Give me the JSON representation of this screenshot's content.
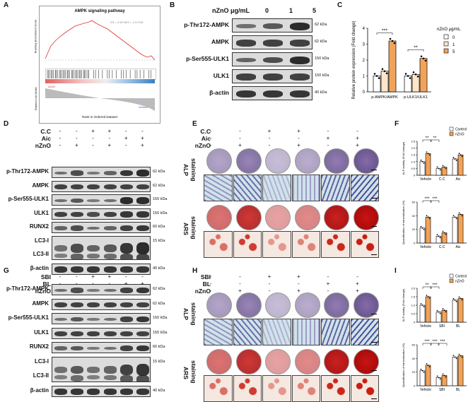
{
  "panels": {
    "A": {
      "letter": "A",
      "title": "AMPK signaling pathway",
      "ylabel_top": "Running Enrichment Score",
      "ylabel_bottom": "Ranked List Metric",
      "xlabel": "Rank in Ordered Dataset",
      "stats": "ES = 0.59 NES = 2.3 FDR",
      "high_label": "nZnO",
      "low_label": "Vehicle"
    },
    "B": {
      "letter": "B",
      "header": "nZnO μg/mL",
      "doses": [
        "0",
        "1",
        "5"
      ],
      "rows": [
        {
          "label": "p-Thr172-AMPK",
          "kda": "62 kDa"
        },
        {
          "label": "AMPK",
          "kda": "62 kDa"
        },
        {
          "label": "p-Ser555-ULK1",
          "kda": "150 kDa"
        },
        {
          "label": "ULK1",
          "kda": "150 kDa"
        },
        {
          "label": "β-actin",
          "kda": "40 kDa"
        }
      ]
    },
    "C": {
      "letter": "C",
      "legend_title": "nZnO μg/mL",
      "sig": [
        "***",
        "**"
      ],
      "colors": {
        "c0": "#ffffff",
        "c1": "#fde6c8",
        "c5": "#f2a35a"
      }
    },
    "D": {
      "letter": "D",
      "treat_labels": [
        "C.C",
        "Aic",
        "nZnO"
      ],
      "treat_signs": [
        [
          "-",
          "-",
          "+",
          "+",
          "-",
          "-"
        ],
        [
          "-",
          "-",
          "-",
          "-",
          "+",
          "+"
        ],
        [
          "-",
          "+",
          "-",
          "+",
          "-",
          "+"
        ]
      ],
      "rows": [
        {
          "label": "p-Thr172-AMPK",
          "kda": "62 kDa"
        },
        {
          "label": "AMPK",
          "kda": "62 kDa"
        },
        {
          "label": "p-Ser555-ULK1",
          "kda": "150 kDa"
        },
        {
          "label": "ULK1",
          "kda": "150 kDa"
        },
        {
          "label": "RUNX2",
          "kda": "60 kDa"
        },
        {
          "label": "LC3-I",
          "kda": "15 kDa"
        },
        {
          "label": "LC3-II",
          "kda": ""
        },
        {
          "label": "β-actin",
          "kda": "40 kDa"
        }
      ]
    },
    "E": {
      "letter": "E",
      "treat_labels": [
        "C.C",
        "Aic",
        "nZnO"
      ],
      "stain1": "ALP",
      "stain1b": "staining",
      "stain2": "ARS",
      "stain2b": "staining"
    },
    "F": {
      "letter": "F",
      "legend": [
        "Control",
        "nZnO"
      ],
      "ylabel_top": "ALP activity (Fold change)",
      "ylabel_bottom": "Quantification of mineralization (%)",
      "groups": [
        "Vehicle",
        "C.C",
        "Aic"
      ],
      "sig_top": [
        "**",
        "**"
      ],
      "sig_bottom": [
        "***",
        "***"
      ]
    },
    "G": {
      "letter": "G",
      "treat_labels": [
        "SBI",
        "BL",
        "nZnO"
      ],
      "treat_signs": [
        [
          "-",
          "-",
          "+",
          "+",
          "-",
          "-"
        ],
        [
          "-",
          "-",
          "-",
          "-",
          "+",
          "+"
        ],
        [
          "-",
          "+",
          "-",
          "+",
          "-",
          "+"
        ]
      ],
      "rows": [
        {
          "label": "p-Thr172-AMPK",
          "kda": "62 kDa"
        },
        {
          "label": "AMPK",
          "kda": "62 kDa"
        },
        {
          "label": "p-Ser555-ULK1",
          "kda": "150 kDa"
        },
        {
          "label": "ULK1",
          "kda": "150 kDa"
        },
        {
          "label": "RUNX2",
          "kda": "60 kDa"
        },
        {
          "label": "LC3-I",
          "kda": "15 kDa"
        },
        {
          "label": "LC3-II",
          "kda": ""
        },
        {
          "label": "β-actin",
          "kda": "40 kDa"
        }
      ]
    },
    "H": {
      "letter": "H",
      "treat_labels": [
        "SBI",
        "BL",
        "nZnO"
      ],
      "stain1": "ALP",
      "stain1b": "staining",
      "stain2": "ARS",
      "stain2b": "staining"
    },
    "I": {
      "letter": "I",
      "legend": [
        "Control",
        "nZnO"
      ],
      "ylabel_top": "ALP activity (Fold change)",
      "ylabel_bottom": "Quantification of mineralization (%)",
      "groups": [
        "Vehicle",
        "SBI",
        "BL"
      ],
      "sig_top": [
        "**",
        "***"
      ],
      "sig_bottom": [
        "***",
        "***",
        "***"
      ]
    }
  },
  "chart_data": [
    {
      "id": "C",
      "type": "bar",
      "categories": [
        "p-AMPK/AMPK",
        "p-ULK1/ULK1"
      ],
      "series": [
        {
          "name": "0",
          "values": [
            1.0,
            1.0
          ]
        },
        {
          "name": "1",
          "values": [
            1.3,
            1.1
          ]
        },
        {
          "name": "5",
          "values": [
            3.2,
            2.1
          ]
        }
      ],
      "ylabel": "Relative protein expression (Fold change)",
      "ylim": [
        0,
        4
      ],
      "yticks": [
        "0",
        "1",
        "2",
        "3",
        "4"
      ],
      "legend_title": "nZnO μg/mL"
    },
    {
      "id": "F-top",
      "type": "bar",
      "categories": [
        "Vehicle",
        "C.C",
        "Aic"
      ],
      "series": [
        {
          "name": "Control",
          "values": [
            1.0,
            0.5,
            1.2
          ]
        },
        {
          "name": "nZnO",
          "values": [
            1.6,
            0.6,
            1.5
          ]
        }
      ],
      "ylabel": "ALP activity (Fold change)",
      "ylim": [
        0,
        2.5
      ],
      "yticks": [
        "0",
        "0.5",
        "1.0",
        "1.5",
        "2.0",
        "2.5"
      ]
    },
    {
      "id": "F-bottom",
      "type": "bar",
      "categories": [
        "Vehicle",
        "C.C",
        "Aic"
      ],
      "series": [
        {
          "name": "Control",
          "values": [
            22,
            10,
            38
          ]
        },
        {
          "name": "nZnO",
          "values": [
            38,
            15,
            42
          ]
        }
      ],
      "ylabel": "Quantification of mineralization (%)",
      "ylim": [
        0,
        60
      ],
      "yticks": [
        "0",
        "20",
        "40",
        "60"
      ]
    },
    {
      "id": "I-top",
      "type": "bar",
      "categories": [
        "Vehicle",
        "SBI",
        "BL"
      ],
      "series": [
        {
          "name": "Control",
          "values": [
            1.0,
            0.6,
            1.3
          ]
        },
        {
          "name": "nZnO",
          "values": [
            1.5,
            0.7,
            1.4
          ]
        }
      ],
      "ylabel": "ALP activity (Fold change)",
      "ylim": [
        0,
        2.0
      ],
      "yticks": [
        "0",
        "0.5",
        "1.0",
        "1.5",
        "2.0"
      ]
    },
    {
      "id": "I-bottom",
      "type": "bar",
      "categories": [
        "Vehicle",
        "SBI",
        "BL"
      ],
      "series": [
        {
          "name": "Control",
          "values": [
            22,
            12,
            42
          ]
        },
        {
          "name": "nZnO",
          "values": [
            30,
            15,
            44
          ]
        }
      ],
      "ylabel": "Quantification of mineralization (%)",
      "ylim": [
        0,
        60
      ],
      "yticks": [
        "0",
        "20",
        "40",
        "60"
      ]
    }
  ]
}
